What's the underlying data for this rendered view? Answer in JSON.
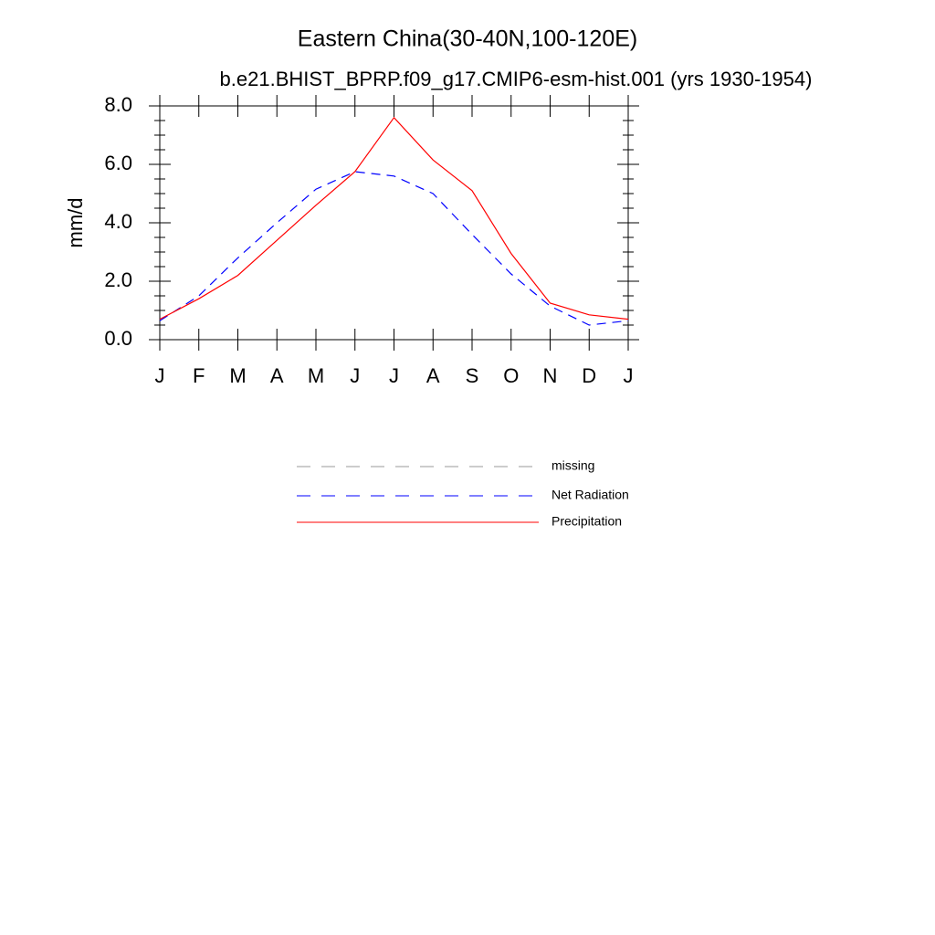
{
  "chart_data": {
    "type": "line",
    "title": "Eastern China(30-40N,100-120E)",
    "subtitle": "b.e21.BHIST_BPRP.f09_g17.CMIP6-esm-hist.001 (yrs 1930-1954)",
    "y_label": "mm/d",
    "categories": [
      "J",
      "F",
      "M",
      "A",
      "M",
      "J",
      "J",
      "A",
      "S",
      "O",
      "N",
      "D",
      "J"
    ],
    "series": [
      {
        "name": "missing",
        "color": "#999999",
        "dash": true,
        "values": [
          null,
          null,
          null,
          null,
          null,
          null,
          null,
          null,
          null,
          null,
          null,
          null,
          null
        ]
      },
      {
        "name": "Net Radiation",
        "color": "#0000ff",
        "dash": true,
        "values": [
          0.65,
          1.5,
          2.8,
          4.0,
          5.15,
          5.75,
          5.6,
          5.0,
          3.6,
          2.25,
          1.15,
          0.5,
          0.65
        ]
      },
      {
        "name": "Precipitation",
        "color": "#ff0000",
        "dash": false,
        "values": [
          0.7,
          1.4,
          2.2,
          3.4,
          4.6,
          5.75,
          7.6,
          6.15,
          5.1,
          2.95,
          1.25,
          0.85,
          0.7
        ]
      }
    ],
    "ylim": [
      0,
      8
    ],
    "yticks": [
      {
        "value": 0,
        "label": "0.0"
      },
      {
        "value": 2,
        "label": "2.0"
      },
      {
        "value": 4,
        "label": "4.0"
      },
      {
        "value": 6,
        "label": "6.0"
      },
      {
        "value": 8,
        "label": "8.0"
      }
    ],
    "yminorticks": [
      0.5,
      1,
      1.5,
      2.5,
      3,
      3.5,
      4.5,
      5,
      5.5,
      6.5,
      7,
      7.5
    ],
    "grid": false
  }
}
